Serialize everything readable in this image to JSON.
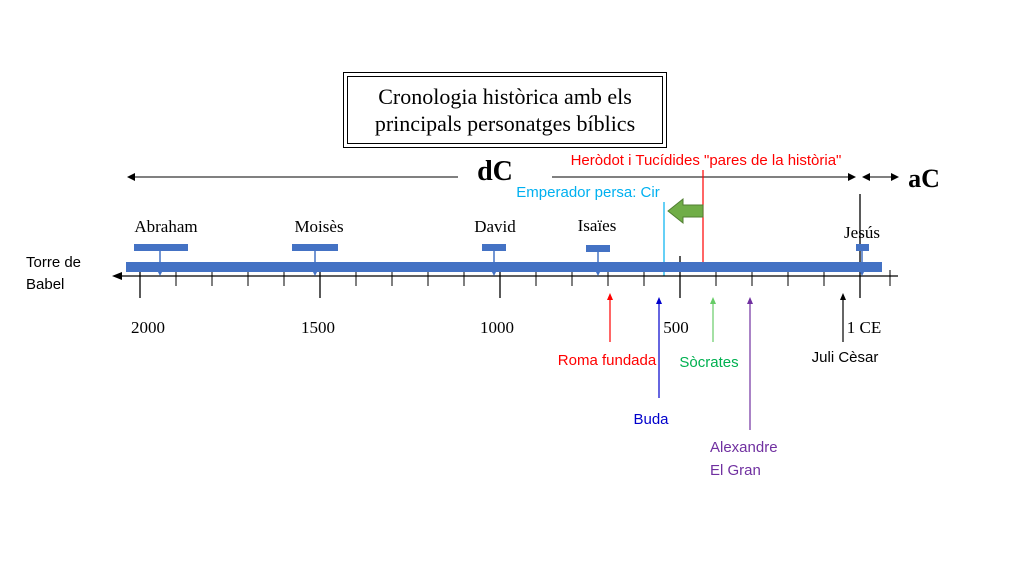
{
  "title": {
    "line1": "Cronologia històrica amb els",
    "line2": "principals personatges bíblics"
  },
  "era_labels": {
    "left": "dC",
    "right": "aC"
  },
  "start_label": {
    "line1": "Torre de",
    "line2": "Babel"
  },
  "axis_labels": [
    "2000",
    "1500",
    "1000",
    "500",
    "1 CE"
  ],
  "above_figures": {
    "abraham": "Abraham",
    "moises": "Moisès",
    "david": "David",
    "isaies": "Isaïes",
    "jesus": "Jesús"
  },
  "annotations": {
    "herodot": "Heròdot i Tucídides \"pares de la història\"",
    "cir": "Emperador persa: Cir",
    "roma": "Roma fundada",
    "socrates": "Sòcrates",
    "buda": "Buda",
    "alexandre_line1": "Alexandre",
    "alexandre_line2": "El Gran",
    "juli": "Juli Cèsar"
  },
  "colors": {
    "bar": "#4472c4",
    "red": "#ff0000",
    "cyan": "#00b0f0",
    "green": "#00b050",
    "blue": "#0000cc",
    "purple": "#7030a0",
    "arrow_fill": "#70ad47",
    "black": "#000000"
  }
}
